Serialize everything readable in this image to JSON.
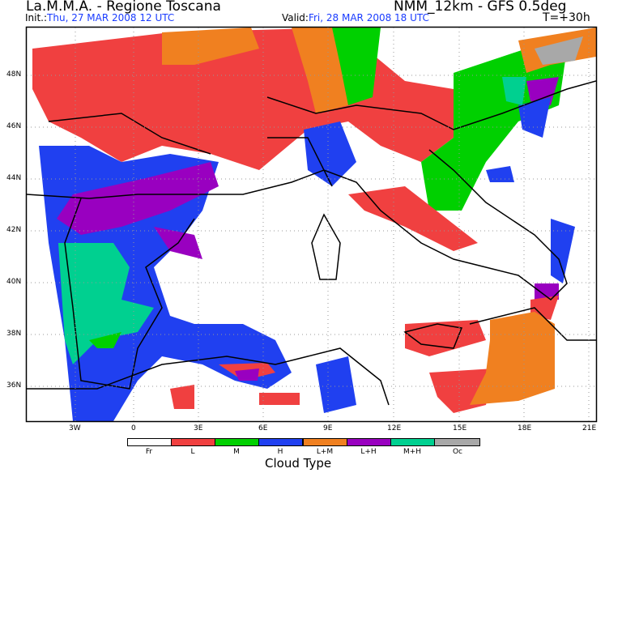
{
  "header": {
    "org": "La.M.M.A. - Regione Toscana",
    "model": "NMM_12km - GFS 0.5deg",
    "init_label": "Init.:",
    "init_value": "Thu, 27 MAR 2008  12 UTC",
    "valid_label": "Valid:",
    "valid_value": "Fri, 28 MAR 2008  18 UTC",
    "lead": "T=+30h"
  },
  "axes": {
    "lon_ticks": [
      "3W",
      "0",
      "3E",
      "6E",
      "9E",
      "12E",
      "15E",
      "18E",
      "21E"
    ],
    "lat_ticks": [
      "48N",
      "46N",
      "44N",
      "42N",
      "40N",
      "38N",
      "36N"
    ]
  },
  "legend": {
    "title": "Cloud Type",
    "items": [
      {
        "label": "Fr",
        "color": "#ffffff"
      },
      {
        "label": "L",
        "color": "#f04040"
      },
      {
        "label": "M",
        "color": "#00d000"
      },
      {
        "label": "H",
        "color": "#2040f0"
      },
      {
        "label": "L+M",
        "color": "#f08020"
      },
      {
        "label": "L+H",
        "color": "#9900c0"
      },
      {
        "label": "M+H",
        "color": "#00d090"
      },
      {
        "label": "Oc",
        "color": "#a8a8a8"
      }
    ]
  }
}
